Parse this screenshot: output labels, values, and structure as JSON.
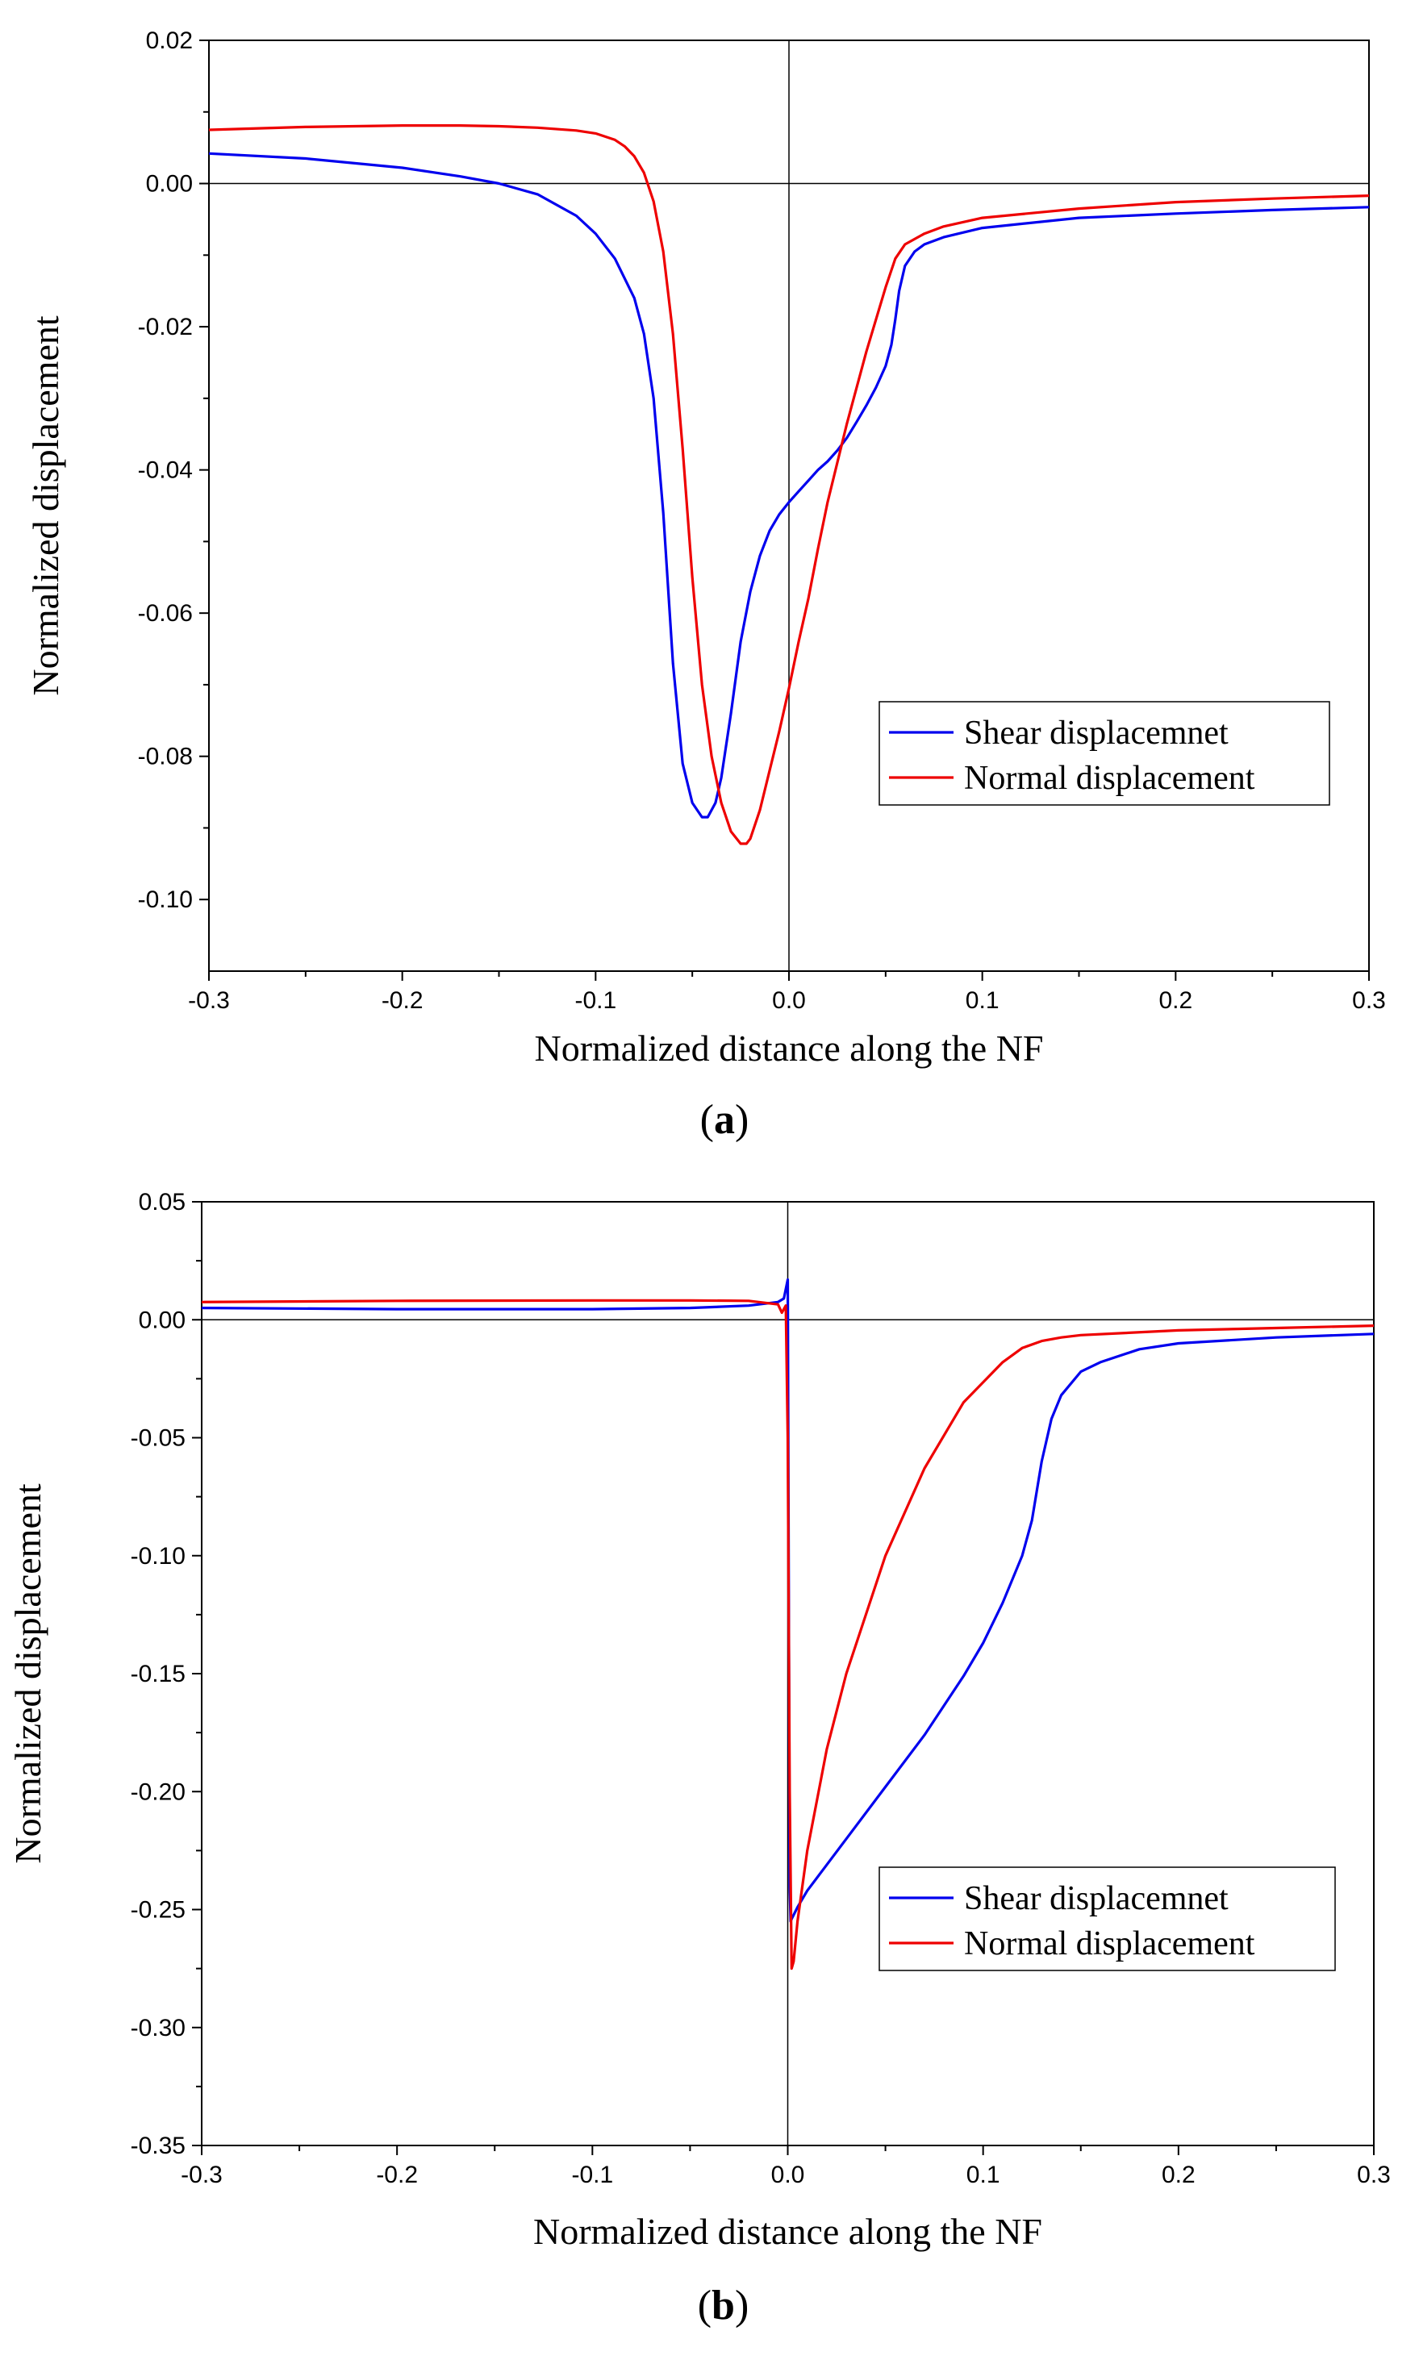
{
  "chart_data": [
    {
      "type": "line",
      "panel_label": "a",
      "title": "",
      "xlabel": "Normalized distance along the NF",
      "ylabel": "Normalized displacement",
      "xlim": [
        -0.3,
        0.3
      ],
      "ylim": [
        -0.11,
        0.02
      ],
      "xticks": [
        -0.3,
        -0.2,
        -0.1,
        0.0,
        0.1,
        0.2,
        0.3
      ],
      "xtick_labels": [
        "-0.3",
        "-0.2",
        "-0.1",
        "0.0",
        "0.1",
        "0.2",
        "0.3"
      ],
      "yticks": [
        0.02,
        0.0,
        -0.02,
        -0.04,
        -0.06,
        -0.08,
        -0.1
      ],
      "ytick_labels": [
        "0.02",
        "0.00",
        "-0.02",
        "-0.04",
        "-0.06",
        "-0.08",
        "-0.10"
      ],
      "grid": false,
      "legend_position": "bottom-right",
      "series": [
        {
          "name": "Shear displacemnet",
          "color": "#0000ee",
          "x": [
            -0.3,
            -0.25,
            -0.2,
            -0.17,
            -0.15,
            -0.13,
            -0.11,
            -0.1,
            -0.09,
            -0.08,
            -0.075,
            -0.07,
            -0.065,
            -0.06,
            -0.055,
            -0.05,
            -0.045,
            -0.042,
            -0.038,
            -0.035,
            -0.03,
            -0.025,
            -0.02,
            -0.015,
            -0.01,
            -0.005,
            0.0,
            0.005,
            0.01,
            0.015,
            0.02,
            0.025,
            0.03,
            0.035,
            0.04,
            0.045,
            0.05,
            0.053,
            0.055,
            0.057,
            0.06,
            0.065,
            0.07,
            0.08,
            0.1,
            0.15,
            0.2,
            0.25,
            0.3
          ],
          "y": [
            0.0042,
            0.0035,
            0.0022,
            0.001,
            0.0,
            -0.0015,
            -0.0045,
            -0.007,
            -0.0105,
            -0.016,
            -0.021,
            -0.03,
            -0.046,
            -0.067,
            -0.081,
            -0.0865,
            -0.0885,
            -0.0885,
            -0.0865,
            -0.083,
            -0.074,
            -0.064,
            -0.057,
            -0.052,
            -0.0485,
            -0.0462,
            -0.0445,
            -0.043,
            -0.0415,
            -0.04,
            -0.0388,
            -0.0373,
            -0.0355,
            -0.0333,
            -0.031,
            -0.0285,
            -0.0255,
            -0.0225,
            -0.019,
            -0.015,
            -0.0115,
            -0.0095,
            -0.0085,
            -0.0075,
            -0.0062,
            -0.0048,
            -0.0042,
            -0.0037,
            -0.0033
          ]
        },
        {
          "name": "Normal displacement",
          "color": "#ee0000",
          "x": [
            -0.3,
            -0.25,
            -0.2,
            -0.17,
            -0.15,
            -0.13,
            -0.11,
            -0.1,
            -0.09,
            -0.085,
            -0.08,
            -0.075,
            -0.07,
            -0.065,
            -0.06,
            -0.055,
            -0.05,
            -0.045,
            -0.04,
            -0.035,
            -0.03,
            -0.025,
            -0.022,
            -0.02,
            -0.015,
            -0.01,
            -0.005,
            0.0,
            0.005,
            0.01,
            0.015,
            0.02,
            0.03,
            0.04,
            0.05,
            0.055,
            0.06,
            0.07,
            0.08,
            0.1,
            0.15,
            0.2,
            0.25,
            0.3
          ],
          "y": [
            0.0075,
            0.0079,
            0.0081,
            0.0081,
            0.008,
            0.0078,
            0.0074,
            0.007,
            0.0061,
            0.0052,
            0.0038,
            0.0015,
            -0.0025,
            -0.0095,
            -0.021,
            -0.037,
            -0.055,
            -0.07,
            -0.08,
            -0.0865,
            -0.0905,
            -0.0922,
            -0.0922,
            -0.0915,
            -0.0875,
            -0.082,
            -0.0765,
            -0.0705,
            -0.064,
            -0.058,
            -0.051,
            -0.0445,
            -0.0335,
            -0.0235,
            -0.0145,
            -0.0105,
            -0.0085,
            -0.007,
            -0.006,
            -0.0048,
            -0.0035,
            -0.0026,
            -0.0021,
            -0.0017
          ]
        }
      ]
    },
    {
      "type": "line",
      "panel_label": "b",
      "title": "",
      "xlabel": "Normalized distance along the NF",
      "ylabel": "Normalized displacement",
      "xlim": [
        -0.3,
        0.3
      ],
      "ylim": [
        -0.35,
        0.05
      ],
      "xticks": [
        -0.3,
        -0.2,
        -0.1,
        0.0,
        0.1,
        0.2,
        0.3
      ],
      "xtick_labels": [
        "-0.3",
        "-0.2",
        "-0.1",
        "0.0",
        "0.1",
        "0.2",
        "0.3"
      ],
      "yticks": [
        0.05,
        0.0,
        -0.05,
        -0.1,
        -0.15,
        -0.2,
        -0.25,
        -0.3,
        -0.35
      ],
      "ytick_labels": [
        "0.05",
        "0.00",
        "-0.05",
        "-0.10",
        "-0.15",
        "-0.20",
        "-0.25",
        "-0.30",
        "-0.35"
      ],
      "grid": false,
      "legend_position": "bottom-right",
      "series": [
        {
          "name": "Shear displacemnet",
          "color": "#0000ee",
          "x": [
            -0.3,
            -0.2,
            -0.1,
            -0.05,
            -0.02,
            -0.005,
            -0.002,
            0.0,
            0.0005,
            0.001,
            0.0015,
            0.002,
            0.005,
            0.01,
            0.02,
            0.03,
            0.05,
            0.07,
            0.09,
            0.1,
            0.11,
            0.12,
            0.125,
            0.13,
            0.135,
            0.14,
            0.15,
            0.16,
            0.18,
            0.2,
            0.25,
            0.3
          ],
          "y": [
            0.005,
            0.0045,
            0.0045,
            0.005,
            0.006,
            0.0075,
            0.009,
            0.017,
            -0.11,
            -0.24,
            -0.255,
            -0.254,
            -0.249,
            -0.242,
            -0.231,
            -0.22,
            -0.198,
            -0.176,
            -0.151,
            -0.137,
            -0.12,
            -0.1,
            -0.085,
            -0.06,
            -0.042,
            -0.032,
            -0.022,
            -0.018,
            -0.0125,
            -0.01,
            -0.0075,
            -0.006
          ]
        },
        {
          "name": "Normal displacement",
          "color": "#ee0000",
          "x": [
            -0.3,
            -0.2,
            -0.1,
            -0.05,
            -0.02,
            -0.005,
            -0.003,
            -0.001,
            0.0,
            0.001,
            0.002,
            0.003,
            0.005,
            0.01,
            0.02,
            0.03,
            0.05,
            0.07,
            0.09,
            0.11,
            0.12,
            0.13,
            0.14,
            0.15,
            0.2,
            0.25,
            0.3
          ],
          "y": [
            0.0075,
            0.008,
            0.0082,
            0.0082,
            0.008,
            0.0065,
            0.003,
            0.006,
            -0.05,
            -0.2,
            -0.275,
            -0.272,
            -0.255,
            -0.225,
            -0.182,
            -0.15,
            -0.1,
            -0.063,
            -0.035,
            -0.018,
            -0.012,
            -0.009,
            -0.0075,
            -0.0065,
            -0.0045,
            -0.0035,
            -0.0025
          ]
        }
      ]
    }
  ]
}
